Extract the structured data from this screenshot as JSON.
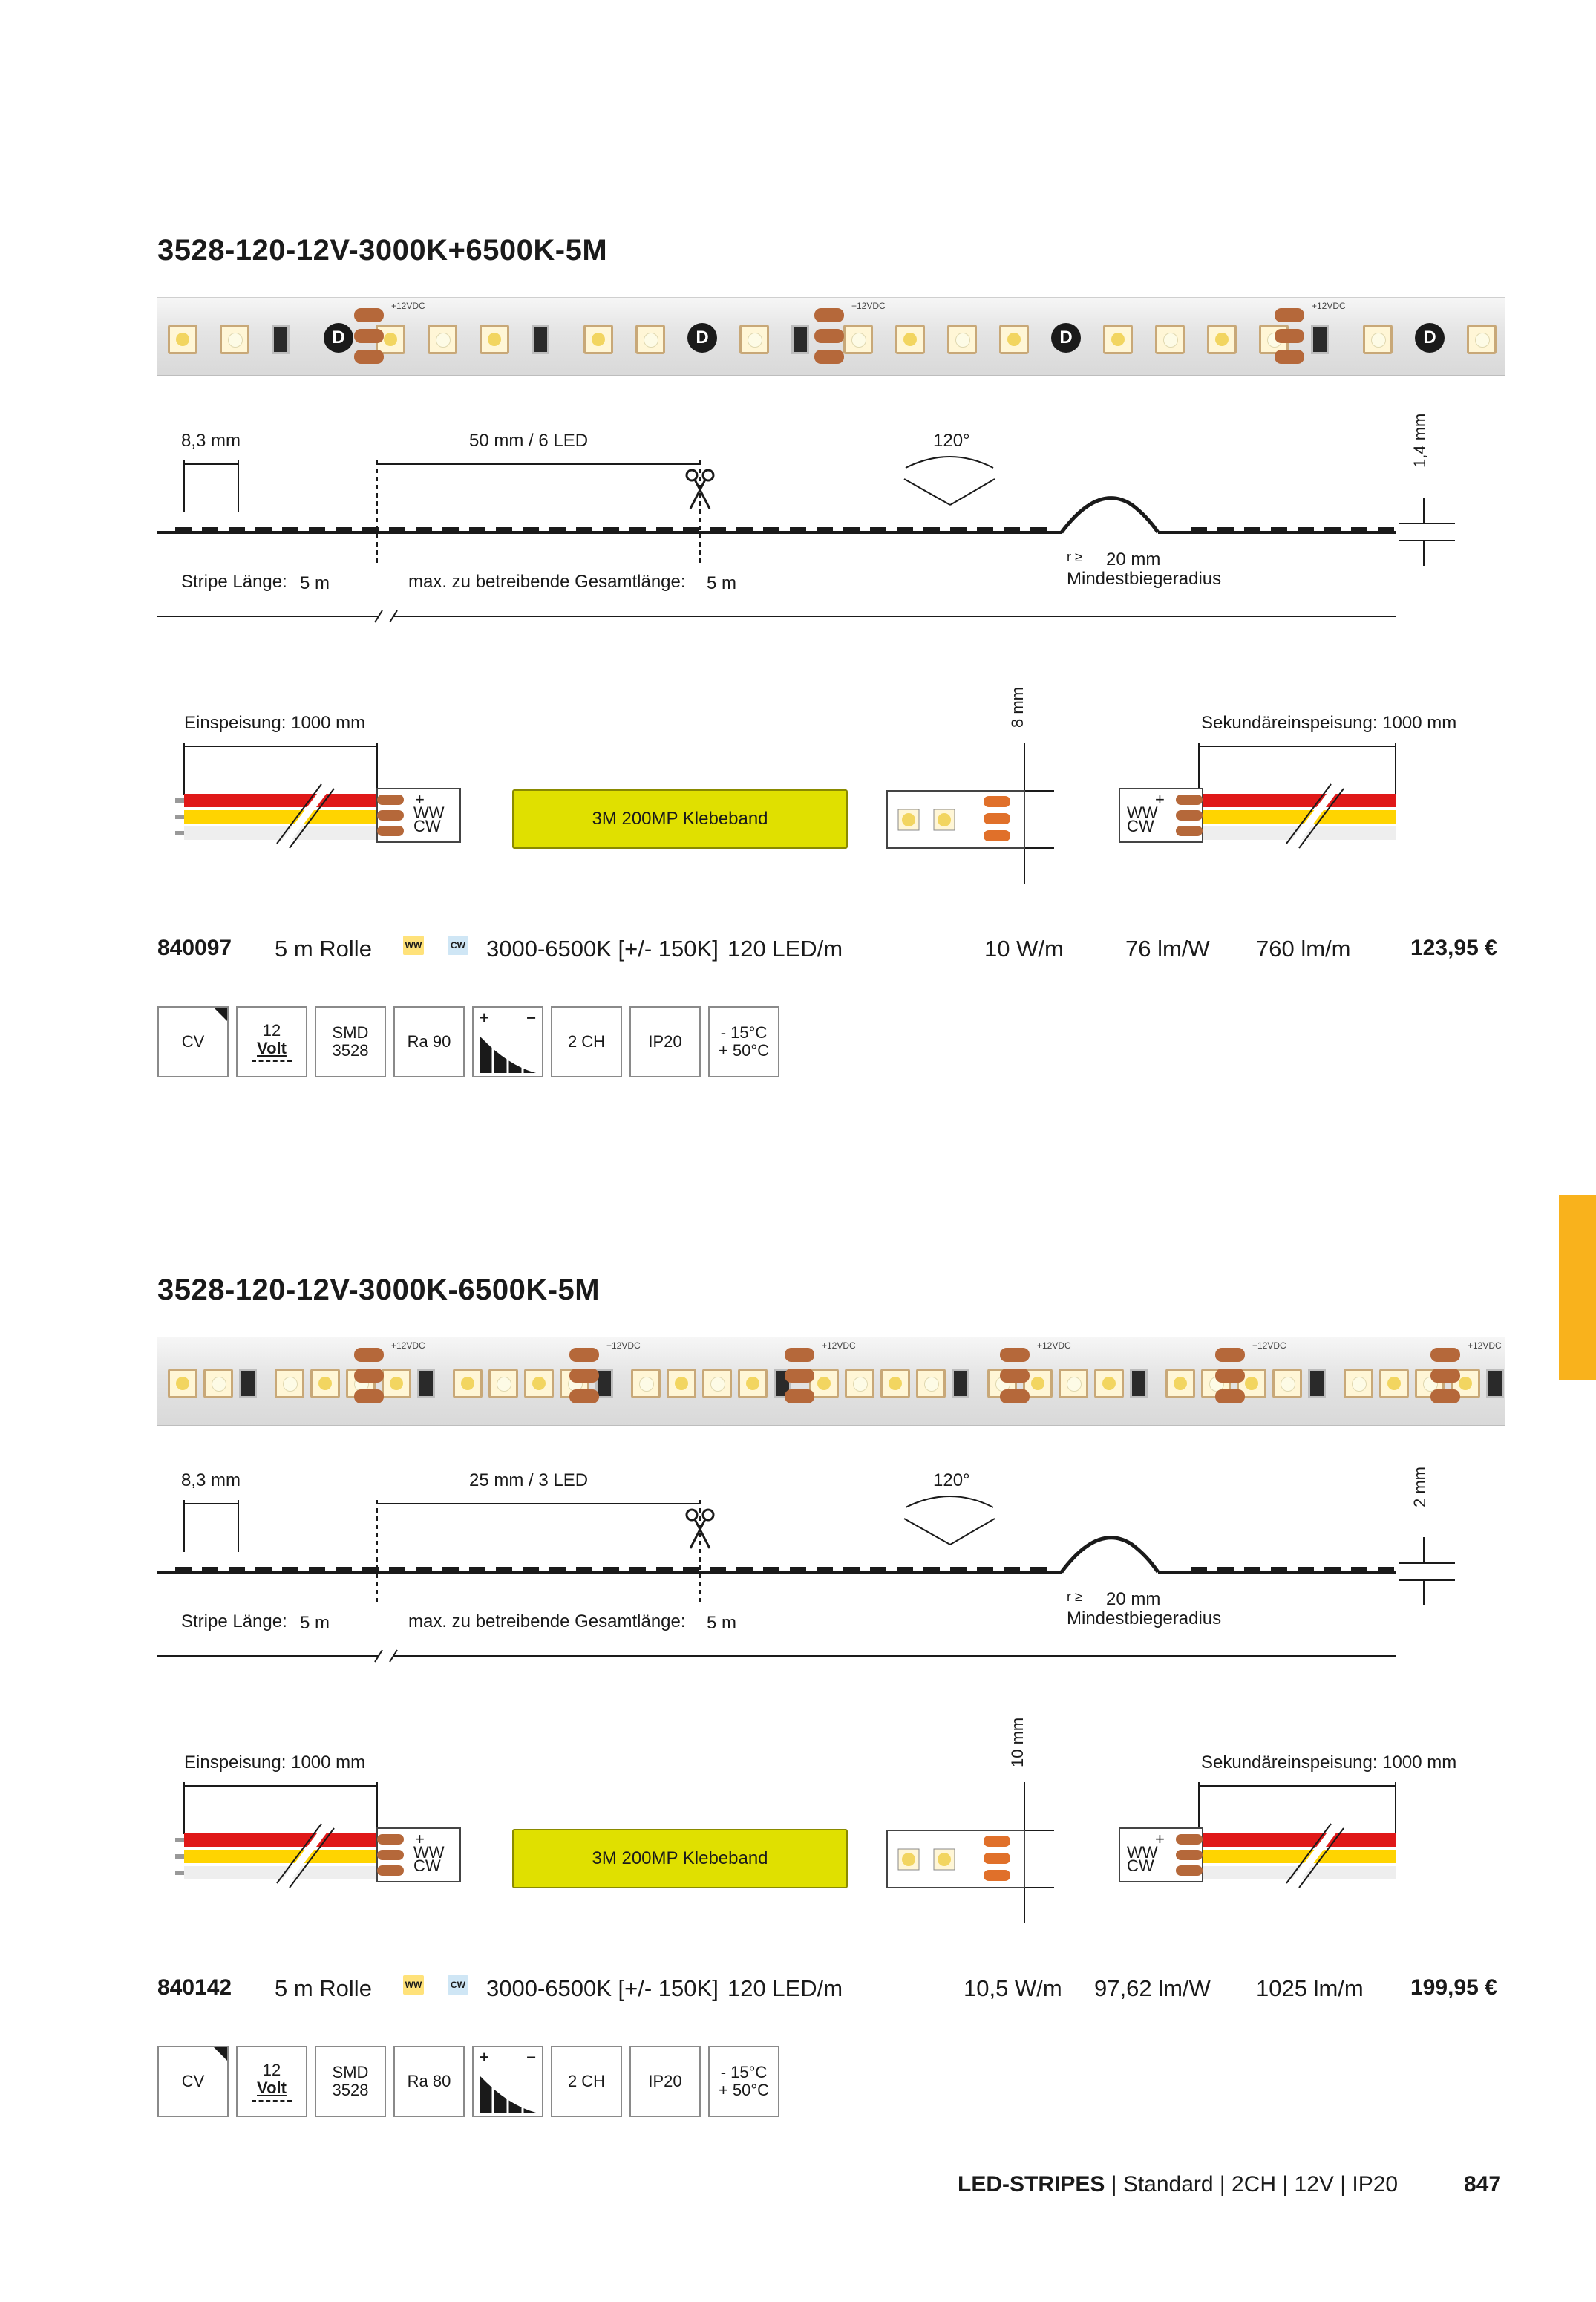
{
  "sections": [
    {
      "title": "3528-120-12V-3000K+6500K-5M",
      "strip_label": "+12VDC",
      "dims": {
        "led_pitch": "8,3 mm",
        "cut_unit": "50 mm / 6 LED",
        "beam_angle": "120°",
        "height": "1,4 mm",
        "stripe_length_label": "Stripe Länge:",
        "stripe_length_value": "5 m",
        "max_length_label": "max. zu betreibende Gesamtlänge:",
        "max_length_value": "5 m",
        "radius_symbol": "r ≥",
        "radius_value": "20 mm",
        "radius_label": "Mindestbiegeradius"
      },
      "wiring": {
        "feed": "Einspeisung: 1000 mm",
        "secondary_feed": "Sekundäreinspeisung: 1000 mm",
        "adhesive": "3M 200MP Klebeband",
        "width": "8 mm",
        "wire_labels": [
          "+",
          "WW",
          "CW"
        ]
      },
      "product": {
        "id": "840097",
        "package": "5 m Rolle",
        "chip_ww": "WW",
        "chip_cw": "CW",
        "cct": "3000-6500K [+/- 150K]",
        "density": "120 LED/m",
        "power": "10 W/m",
        "efficacy": "76 lm/W",
        "flux": "760 lm/m",
        "price": "123,95 €"
      },
      "icons": {
        "cv": "CV",
        "volt_num": "12",
        "volt_unit": "Volt",
        "smd": "SMD",
        "smd_type": "3528",
        "ra": "Ra 90",
        "dim_plus": "+",
        "dim_minus": "−",
        "channels": "2 CH",
        "ip": "IP20",
        "temp_min": "- 15°C",
        "temp_max": "+ 50°C"
      }
    },
    {
      "title": "3528-120-12V-3000K-6500K-5M",
      "strip_label": "+12VDC",
      "dims": {
        "led_pitch": "8,3 mm",
        "cut_unit": "25 mm / 3 LED",
        "beam_angle": "120°",
        "height": "2 mm",
        "stripe_length_label": "Stripe Länge:",
        "stripe_length_value": "5 m",
        "max_length_label": "max. zu betreibende Gesamtlänge:",
        "max_length_value": "5 m",
        "radius_symbol": "r ≥",
        "radius_value": "20 mm",
        "radius_label": "Mindestbiegeradius"
      },
      "wiring": {
        "feed": "Einspeisung: 1000 mm",
        "secondary_feed": "Sekundäreinspeisung: 1000 mm",
        "adhesive": "3M 200MP Klebeband",
        "width": "10 mm",
        "wire_labels": [
          "+",
          "WW",
          "CW"
        ]
      },
      "product": {
        "id": "840142",
        "package": "5 m Rolle",
        "chip_ww": "WW",
        "chip_cw": "CW",
        "cct": "3000-6500K [+/- 150K]",
        "density": "120 LED/m",
        "power": "10,5 W/m",
        "efficacy": "97,62 lm/W",
        "flux": "1025 lm/m",
        "price": "199,95 €"
      },
      "icons": {
        "cv": "CV",
        "volt_num": "12",
        "volt_unit": "Volt",
        "smd": "SMD",
        "smd_type": "3528",
        "ra": "Ra 80",
        "dim_plus": "+",
        "dim_minus": "−",
        "channels": "2 CH",
        "ip": "IP20",
        "temp_min": "- 15°C",
        "temp_max": "+ 50°C"
      }
    }
  ],
  "footer": {
    "category": "LED-STRIPES",
    "specs": " | Standard | 2CH | 12V | IP20",
    "page": "847"
  },
  "colors": {
    "accent_tab": "#f9b21c",
    "wire_red": "#e01818",
    "wire_yellow": "#ffd400",
    "wire_white": "#f2f2f2",
    "adhesive": "#e0e000"
  }
}
